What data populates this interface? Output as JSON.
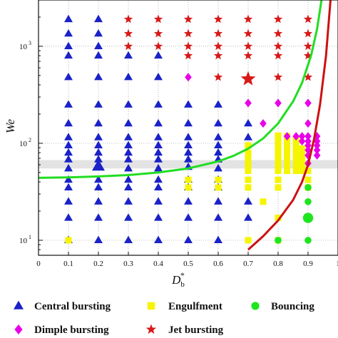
{
  "chart_data": {
    "type": "scatter",
    "xlabel_main": "D",
    "xlabel_sub": "b",
    "xlabel_sup": "*",
    "ylabel": "We",
    "y_scale": "log",
    "xlim": [
      0,
      1.0
    ],
    "ylim": [
      7,
      3000
    ],
    "grid": "dotted",
    "x_ticks": [
      "0",
      "0.1",
      "0.2",
      "0.3",
      "0.4",
      "0.5",
      "0.6",
      "0.7",
      "0.8",
      "0.9",
      "1"
    ],
    "y_ticks": [
      {
        "value": 10,
        "base": "10",
        "exp": "1"
      },
      {
        "value": 100,
        "base": "10",
        "exp": "2"
      },
      {
        "value": 1000,
        "base": "10",
        "exp": "3"
      }
    ],
    "shaded_band": {
      "y_low": 55,
      "y_high": 67,
      "color": "#e3e3e3"
    },
    "colors": {
      "central_bursting": "#1a22c8",
      "engulfment": "#f5f500",
      "bouncing": "#1ee61e",
      "dimple_bursting": "#e800e8",
      "jet_bursting": "#d81818",
      "green_curve": "#22dd22",
      "red_curve": "#cc1111"
    },
    "series": [
      {
        "name": "Central bursting",
        "marker": "triangle",
        "color": "#1a22c8",
        "points": [
          [
            0.1,
            10
          ],
          [
            0.1,
            17
          ],
          [
            0.1,
            25
          ],
          [
            0.1,
            35
          ],
          [
            0.1,
            42
          ],
          [
            0.1,
            55
          ],
          [
            0.1,
            68
          ],
          [
            0.1,
            80
          ],
          [
            0.1,
            95
          ],
          [
            0.1,
            115
          ],
          [
            0.1,
            160
          ],
          [
            0.1,
            250
          ],
          [
            0.1,
            480
          ],
          [
            0.1,
            800
          ],
          [
            0.1,
            1000
          ],
          [
            0.1,
            1350
          ],
          [
            0.1,
            1900
          ],
          [
            0.2,
            10
          ],
          [
            0.2,
            17
          ],
          [
            0.2,
            25
          ],
          [
            0.2,
            35
          ],
          [
            0.2,
            42
          ],
          [
            0.2,
            58,
            "big"
          ],
          [
            0.2,
            68
          ],
          [
            0.2,
            80
          ],
          [
            0.2,
            95
          ],
          [
            0.2,
            115
          ],
          [
            0.2,
            160
          ],
          [
            0.2,
            250
          ],
          [
            0.2,
            480
          ],
          [
            0.2,
            800
          ],
          [
            0.2,
            1000
          ],
          [
            0.2,
            1350
          ],
          [
            0.2,
            1900
          ],
          [
            0.3,
            10
          ],
          [
            0.3,
            17
          ],
          [
            0.3,
            25
          ],
          [
            0.3,
            35
          ],
          [
            0.3,
            42
          ],
          [
            0.3,
            55
          ],
          [
            0.3,
            68
          ],
          [
            0.3,
            80
          ],
          [
            0.3,
            95
          ],
          [
            0.3,
            115
          ],
          [
            0.3,
            160
          ],
          [
            0.3,
            250
          ],
          [
            0.3,
            480
          ],
          [
            0.3,
            800
          ],
          [
            0.4,
            10
          ],
          [
            0.4,
            17
          ],
          [
            0.4,
            25
          ],
          [
            0.4,
            35
          ],
          [
            0.4,
            42
          ],
          [
            0.4,
            55
          ],
          [
            0.4,
            68
          ],
          [
            0.4,
            80
          ],
          [
            0.4,
            95
          ],
          [
            0.4,
            115
          ],
          [
            0.4,
            160
          ],
          [
            0.4,
            250
          ],
          [
            0.4,
            480
          ],
          [
            0.4,
            800
          ],
          [
            0.5,
            10
          ],
          [
            0.5,
            17
          ],
          [
            0.5,
            25
          ],
          [
            0.5,
            35
          ],
          [
            0.5,
            42
          ],
          [
            0.5,
            57
          ],
          [
            0.5,
            68
          ],
          [
            0.5,
            80
          ],
          [
            0.5,
            95
          ],
          [
            0.5,
            115
          ],
          [
            0.5,
            160
          ],
          [
            0.5,
            250
          ],
          [
            0.6,
            10
          ],
          [
            0.6,
            17
          ],
          [
            0.6,
            25
          ],
          [
            0.6,
            35
          ],
          [
            0.6,
            42
          ],
          [
            0.6,
            55
          ],
          [
            0.6,
            68
          ],
          [
            0.6,
            80
          ],
          [
            0.6,
            95
          ],
          [
            0.6,
            115
          ],
          [
            0.6,
            160
          ],
          [
            0.6,
            250
          ],
          [
            0.7,
            17
          ],
          [
            0.7,
            25
          ],
          [
            0.7,
            160
          ],
          [
            0.7,
            115
          ]
        ]
      },
      {
        "name": "Engulfment",
        "marker": "square",
        "color": "#f5f500",
        "points": [
          [
            0.1,
            10
          ],
          [
            0.5,
            35
          ],
          [
            0.5,
            42
          ],
          [
            0.6,
            35
          ],
          [
            0.6,
            42
          ],
          [
            0.7,
            10
          ],
          [
            0.7,
            35
          ],
          [
            0.7,
            42
          ],
          [
            0.7,
            52
          ],
          [
            0.7,
            57
          ],
          [
            0.7,
            63
          ],
          [
            0.7,
            70
          ],
          [
            0.7,
            80
          ],
          [
            0.7,
            95
          ],
          [
            0.75,
            25
          ],
          [
            0.8,
            10
          ],
          [
            0.8,
            17
          ],
          [
            0.8,
            35
          ],
          [
            0.8,
            42
          ],
          [
            0.8,
            52
          ],
          [
            0.8,
            57
          ],
          [
            0.8,
            63
          ],
          [
            0.8,
            70
          ],
          [
            0.8,
            80
          ],
          [
            0.8,
            90
          ],
          [
            0.8,
            100
          ],
          [
            0.8,
            110
          ],
          [
            0.8,
            120
          ],
          [
            0.83,
            52
          ],
          [
            0.83,
            60
          ],
          [
            0.83,
            68
          ],
          [
            0.83,
            78
          ],
          [
            0.83,
            88
          ],
          [
            0.83,
            98
          ],
          [
            0.83,
            108
          ],
          [
            0.83,
            118
          ],
          [
            0.86,
            52
          ],
          [
            0.86,
            60
          ],
          [
            0.86,
            68
          ],
          [
            0.86,
            78
          ],
          [
            0.86,
            88
          ],
          [
            0.86,
            98
          ],
          [
            0.86,
            108
          ],
          [
            0.88,
            52
          ],
          [
            0.88,
            60
          ],
          [
            0.88,
            68
          ],
          [
            0.88,
            78
          ],
          [
            0.88,
            88
          ],
          [
            0.9,
            35
          ],
          [
            0.9,
            42
          ],
          [
            0.9,
            52
          ]
        ]
      },
      {
        "name": "Bouncing",
        "marker": "circle",
        "color": "#1ee61e",
        "points": [
          [
            0.8,
            10
          ],
          [
            0.9,
            10
          ],
          [
            0.9,
            17,
            "big"
          ],
          [
            0.9,
            25
          ],
          [
            0.9,
            35
          ]
        ]
      },
      {
        "name": "Dimple bursting",
        "marker": "diamond",
        "color": "#e800e8",
        "points": [
          [
            0.5,
            480
          ],
          [
            0.7,
            260
          ],
          [
            0.75,
            160
          ],
          [
            0.8,
            260
          ],
          [
            0.83,
            118
          ],
          [
            0.86,
            118
          ],
          [
            0.88,
            118
          ],
          [
            0.9,
            118
          ],
          [
            0.93,
            118
          ],
          [
            0.88,
            105
          ],
          [
            0.9,
            105
          ],
          [
            0.93,
            105
          ],
          [
            0.9,
            95
          ],
          [
            0.93,
            95
          ],
          [
            0.9,
            85
          ],
          [
            0.93,
            85
          ],
          [
            0.9,
            75
          ],
          [
            0.93,
            75
          ],
          [
            0.9,
            62
          ],
          [
            0.9,
            160
          ],
          [
            0.9,
            260
          ]
        ]
      },
      {
        "name": "Jet bursting",
        "marker": "star",
        "color": "#d81818",
        "points": [
          [
            0.3,
            1000
          ],
          [
            0.3,
            1350
          ],
          [
            0.3,
            1900
          ],
          [
            0.4,
            1000
          ],
          [
            0.4,
            1350
          ],
          [
            0.4,
            1900
          ],
          [
            0.5,
            800
          ],
          [
            0.5,
            1000
          ],
          [
            0.5,
            1350
          ],
          [
            0.5,
            1900
          ],
          [
            0.6,
            480
          ],
          [
            0.6,
            800
          ],
          [
            0.6,
            1000
          ],
          [
            0.6,
            1350
          ],
          [
            0.6,
            1900
          ],
          [
            0.7,
            460,
            "big"
          ],
          [
            0.7,
            800
          ],
          [
            0.7,
            1000
          ],
          [
            0.7,
            1350
          ],
          [
            0.7,
            1900
          ],
          [
            0.8,
            480
          ],
          [
            0.8,
            800
          ],
          [
            0.8,
            1000
          ],
          [
            0.8,
            1350
          ],
          [
            0.8,
            1900
          ],
          [
            0.9,
            480
          ],
          [
            0.9,
            800
          ],
          [
            0.9,
            1000
          ],
          [
            0.9,
            1350
          ],
          [
            0.9,
            1900
          ]
        ]
      }
    ],
    "curves": [
      {
        "color": "#22dd22",
        "points": [
          [
            0,
            44
          ],
          [
            0.1,
            44.5
          ],
          [
            0.2,
            45.5
          ],
          [
            0.3,
            47
          ],
          [
            0.4,
            50
          ],
          [
            0.5,
            55
          ],
          [
            0.6,
            65
          ],
          [
            0.65,
            74
          ],
          [
            0.7,
            88
          ],
          [
            0.75,
            112
          ],
          [
            0.8,
            160
          ],
          [
            0.85,
            270
          ],
          [
            0.88,
            420
          ],
          [
            0.91,
            800
          ],
          [
            0.93,
            1500
          ],
          [
            0.945,
            3000
          ]
        ]
      },
      {
        "color": "#cc1111",
        "points": [
          [
            0.7,
            8
          ],
          [
            0.75,
            11
          ],
          [
            0.8,
            16
          ],
          [
            0.85,
            26
          ],
          [
            0.88,
            40
          ],
          [
            0.9,
            60
          ],
          [
            0.92,
            110
          ],
          [
            0.94,
            250
          ],
          [
            0.96,
            800
          ],
          [
            0.975,
            3000
          ]
        ]
      }
    ],
    "legend": [
      {
        "label": "Central bursting",
        "marker": "triangle",
        "color": "#1a22c8"
      },
      {
        "label": "Engulfment",
        "marker": "square",
        "color": "#f5f500"
      },
      {
        "label": "Bouncing",
        "marker": "circle",
        "color": "#1ee61e"
      },
      {
        "label": "Dimple bursting",
        "marker": "diamond",
        "color": "#e800e8"
      },
      {
        "label": "Jet bursting",
        "marker": "star",
        "color": "#d81818"
      }
    ]
  }
}
